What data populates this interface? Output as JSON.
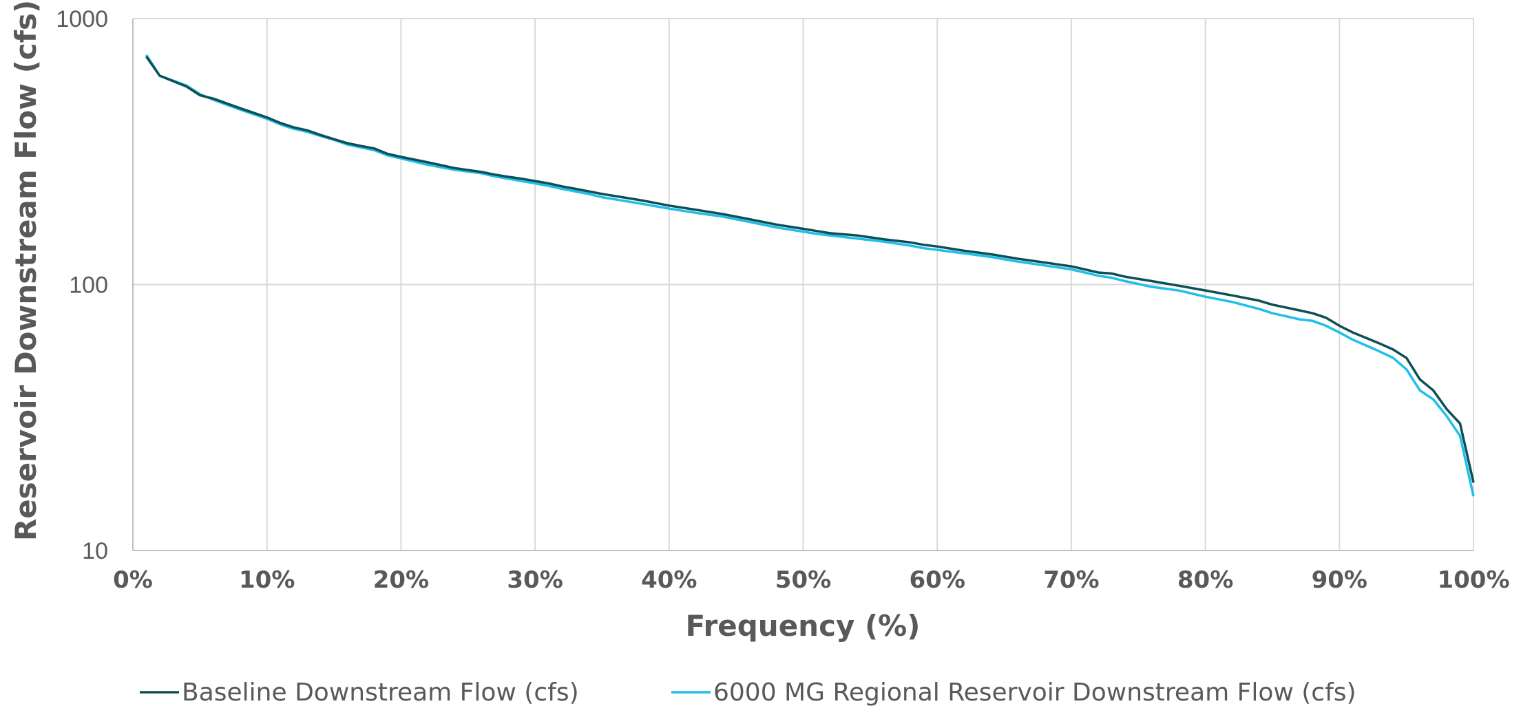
{
  "chart_data": {
    "type": "line",
    "title": "",
    "xlabel": "Frequency (%)",
    "ylabel": "Reservoir Downstream Flow (cfs)",
    "x_scale": "linear",
    "y_scale": "log",
    "xlim": [
      0,
      100
    ],
    "ylim": [
      10,
      1000
    ],
    "x_ticks": [
      "0%",
      "10%",
      "20%",
      "30%",
      "40%",
      "50%",
      "60%",
      "70%",
      "80%",
      "90%",
      "100%"
    ],
    "y_ticks": [
      "10",
      "100",
      "1000"
    ],
    "grid": true,
    "legend_position": "bottom",
    "x": [
      1,
      2,
      4,
      5,
      6,
      8,
      10,
      11,
      12,
      13,
      14,
      15,
      16,
      17,
      18,
      19,
      20,
      22,
      24,
      26,
      27,
      28,
      29,
      30,
      31,
      32,
      33,
      34,
      35,
      36,
      38,
      40,
      42,
      44,
      46,
      48,
      50,
      51,
      52,
      54,
      56,
      58,
      59,
      60,
      62,
      64,
      66,
      68,
      70,
      71,
      72,
      73,
      74,
      76,
      78,
      80,
      82,
      84,
      85,
      86,
      87,
      88,
      89,
      90,
      91,
      92,
      93,
      94,
      95,
      96,
      97,
      98,
      99,
      100
    ],
    "series": [
      {
        "name": "Baseline Downstream Flow (cfs)",
        "color": "#0d4f56",
        "values": [
          720,
          610,
          555,
          515,
          500,
          460,
          425,
          405,
          390,
          380,
          365,
          352,
          340,
          332,
          325,
          310,
          302,
          288,
          274,
          265,
          259,
          254,
          250,
          245,
          240,
          234,
          229,
          224,
          219,
          215,
          207,
          198,
          191,
          184,
          176,
          168,
          162,
          159,
          156,
          153,
          148,
          144,
          141,
          139,
          134,
          130,
          125,
          121,
          117,
          114,
          111,
          110,
          107,
          103,
          99,
          95,
          91,
          87,
          84,
          82,
          80,
          78,
          75,
          70,
          66,
          63,
          60,
          57,
          53,
          44,
          40,
          34,
          30,
          18
        ]
      },
      {
        "name": "6000 MG Regional Reservoir Downstream Flow (cfs)",
        "color": "#1fbfea",
        "values": [
          730,
          610,
          560,
          520,
          495,
          455,
          420,
          400,
          385,
          375,
          362,
          350,
          336,
          328,
          320,
          306,
          298,
          282,
          270,
          262,
          255,
          250,
          245,
          240,
          235,
          229,
          224,
          219,
          213,
          209,
          201,
          193,
          186,
          180,
          172,
          164,
          158,
          155,
          153,
          149,
          145,
          140,
          137,
          135,
          131,
          127,
          122,
          118,
          114,
          111,
          108,
          106,
          103,
          98,
          95,
          90,
          86,
          81,
          78,
          76,
          74,
          73,
          70,
          66,
          62,
          59,
          56,
          53,
          48,
          40,
          37,
          32,
          27,
          16
        ]
      }
    ]
  }
}
